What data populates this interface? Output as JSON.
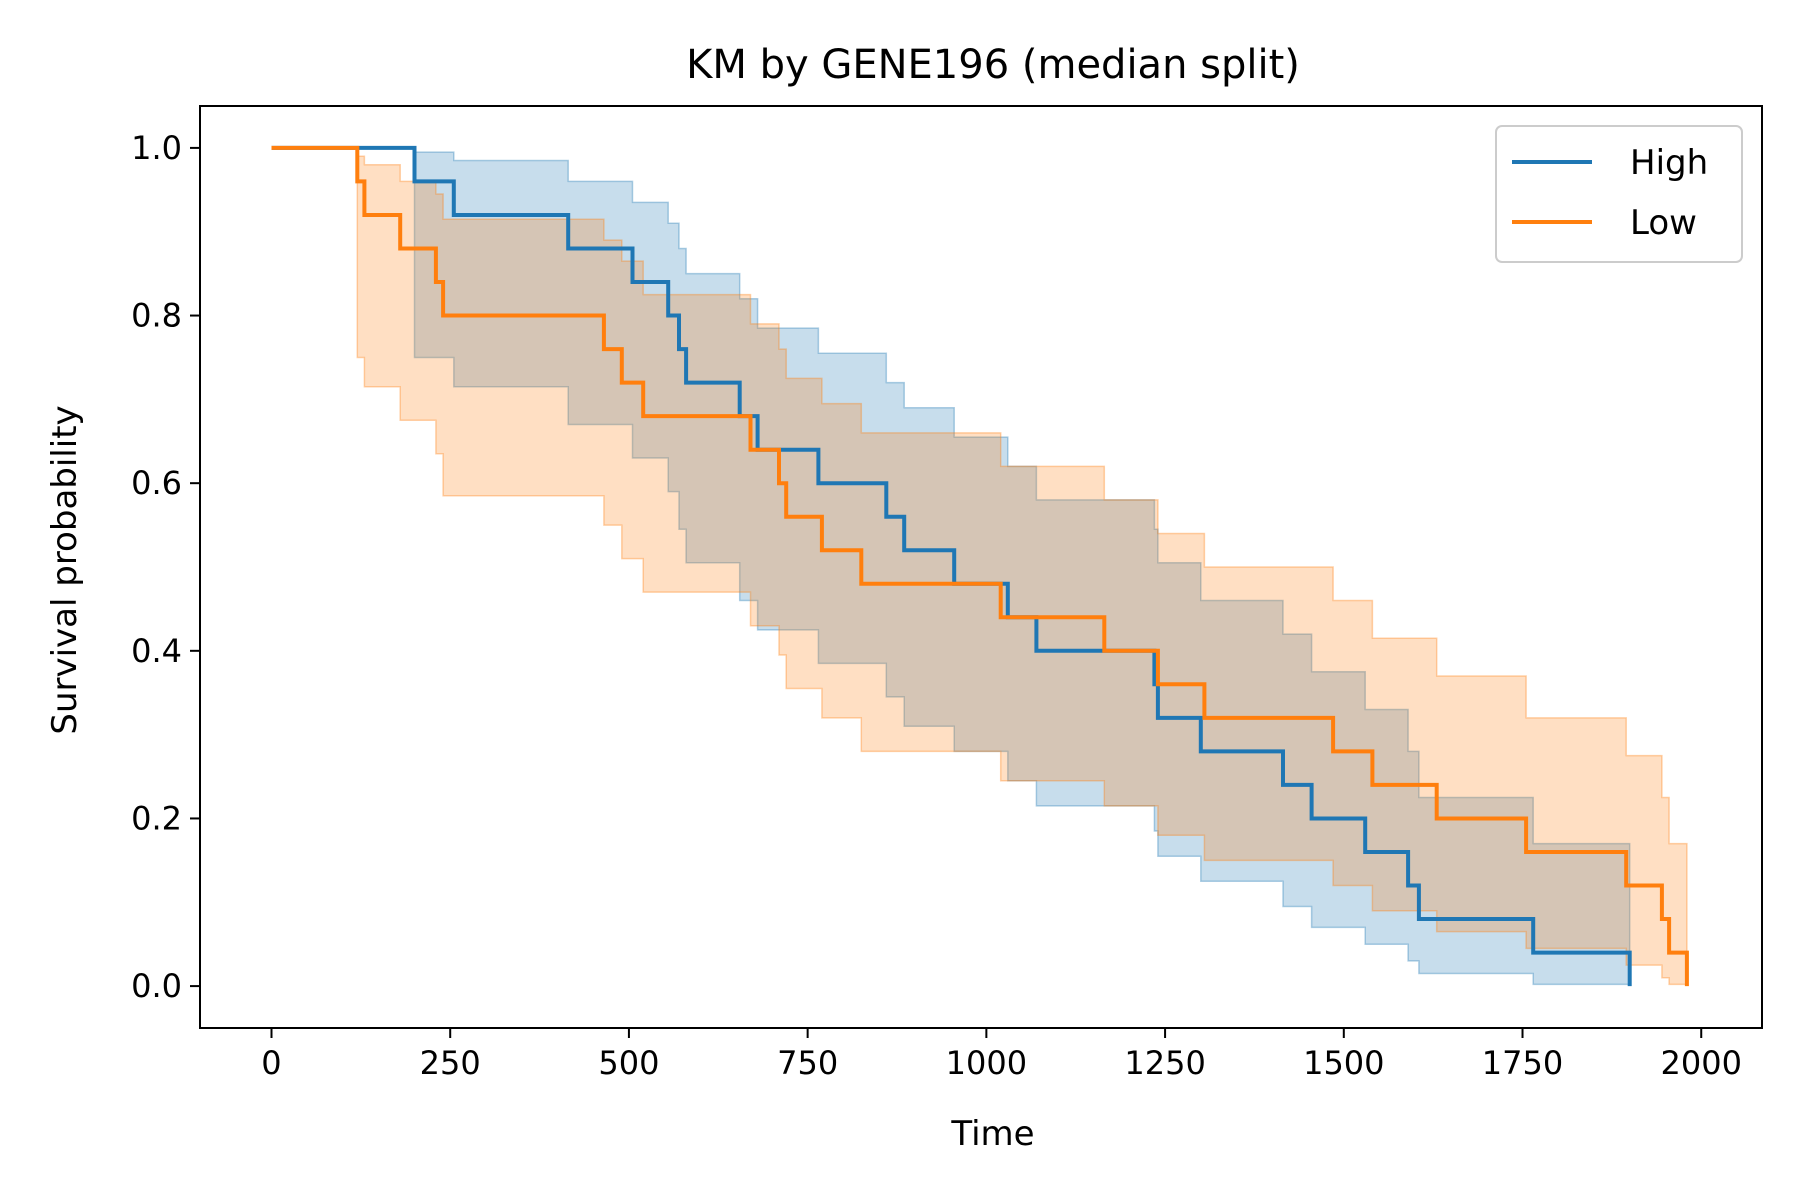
{
  "chart_data": {
    "type": "line",
    "subtype": "kaplan-meier step curves with confidence bands",
    "title": "KM by GENE196 (median split)",
    "xlabel": "Time",
    "ylabel": "Survival probability",
    "xlim": [
      -100,
      2085
    ],
    "ylim": [
      -0.05,
      1.05
    ],
    "x_ticks": [
      0,
      250,
      500,
      750,
      1000,
      1250,
      1500,
      1750,
      2000
    ],
    "x_tick_labels": [
      "0",
      "250",
      "500",
      "750",
      "1000",
      "1250",
      "1500",
      "1750",
      "2000"
    ],
    "y_ticks": [
      0.0,
      0.2,
      0.4,
      0.6,
      0.8,
      1.0
    ],
    "y_tick_labels": [
      "0.0",
      "0.2",
      "0.4",
      "0.6",
      "0.8",
      "1.0"
    ],
    "grid": false,
    "legend_position": "top-right",
    "series": [
      {
        "name": "High",
        "color": "#1f77b4",
        "band_color": "#1f77b4",
        "times": [
          0,
          200,
          255,
          415,
          505,
          555,
          570,
          580,
          655,
          680,
          765,
          860,
          885,
          955,
          1030,
          1070,
          1235,
          1240,
          1300,
          1415,
          1455,
          1530,
          1590,
          1605,
          1765,
          1900
        ],
        "survival": [
          1.0,
          0.96,
          0.92,
          0.88,
          0.84,
          0.8,
          0.76,
          0.72,
          0.68,
          0.64,
          0.6,
          0.56,
          0.52,
          0.48,
          0.44,
          0.4,
          0.36,
          0.32,
          0.28,
          0.24,
          0.2,
          0.16,
          0.12,
          0.08,
          0.04,
          0.0
        ],
        "ci_upper": [
          1.0,
          0.995,
          0.985,
          0.96,
          0.935,
          0.91,
          0.88,
          0.85,
          0.82,
          0.785,
          0.755,
          0.72,
          0.69,
          0.655,
          0.62,
          0.58,
          0.545,
          0.505,
          0.46,
          0.42,
          0.375,
          0.33,
          0.28,
          0.225,
          0.17,
          0.17
        ],
        "ci_lower": [
          1.0,
          0.75,
          0.715,
          0.67,
          0.63,
          0.59,
          0.545,
          0.505,
          0.46,
          0.425,
          0.385,
          0.345,
          0.31,
          0.28,
          0.245,
          0.215,
          0.185,
          0.155,
          0.125,
          0.095,
          0.07,
          0.05,
          0.03,
          0.015,
          0.002,
          0.002
        ]
      },
      {
        "name": "Low",
        "color": "#ff7f0e",
        "band_color": "#ff7f0e",
        "times": [
          0,
          120,
          130,
          180,
          230,
          240,
          465,
          490,
          520,
          670,
          710,
          720,
          770,
          825,
          1020,
          1165,
          1240,
          1305,
          1485,
          1540,
          1630,
          1755,
          1895,
          1945,
          1955,
          1980
        ],
        "survival": [
          1.0,
          0.96,
          0.92,
          0.88,
          0.84,
          0.8,
          0.76,
          0.72,
          0.68,
          0.64,
          0.6,
          0.56,
          0.52,
          0.48,
          0.44,
          0.4,
          0.36,
          0.32,
          0.28,
          0.24,
          0.2,
          0.16,
          0.12,
          0.08,
          0.04,
          0.0
        ],
        "ci_upper": [
          1.0,
          0.99,
          0.98,
          0.96,
          0.945,
          0.915,
          0.89,
          0.865,
          0.825,
          0.79,
          0.76,
          0.725,
          0.695,
          0.66,
          0.62,
          0.58,
          0.54,
          0.5,
          0.46,
          0.415,
          0.37,
          0.32,
          0.275,
          0.225,
          0.17,
          0.17
        ],
        "ci_lower": [
          1.0,
          0.75,
          0.715,
          0.675,
          0.635,
          0.585,
          0.55,
          0.51,
          0.47,
          0.43,
          0.395,
          0.355,
          0.32,
          0.28,
          0.245,
          0.215,
          0.18,
          0.15,
          0.12,
          0.09,
          0.065,
          0.045,
          0.025,
          0.01,
          0.002,
          0.002
        ]
      }
    ]
  }
}
